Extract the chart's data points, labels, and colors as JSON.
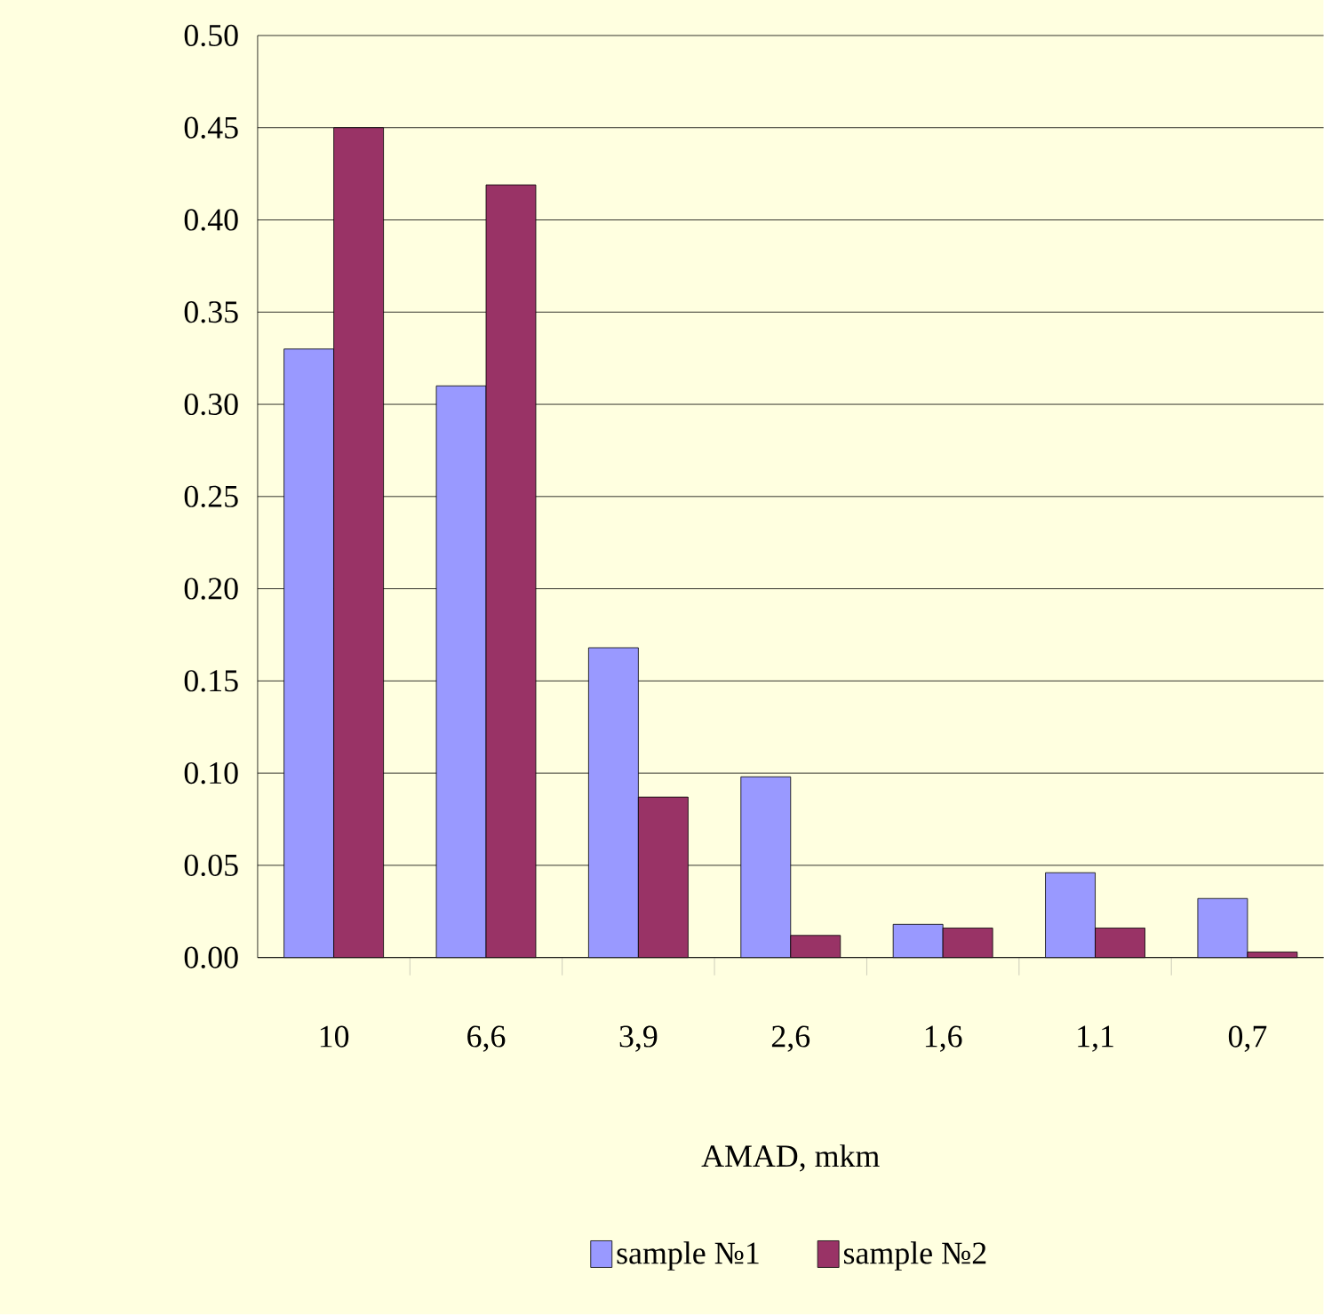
{
  "chart_data": {
    "type": "bar",
    "xlabel": "AMAD, mkm",
    "categories": [
      "10",
      "6,6",
      "3,9",
      "2,6",
      "1,6",
      "1,1",
      "0,7"
    ],
    "series": [
      {
        "name": "sample №1",
        "color": "#9999ff",
        "values": [
          0.33,
          0.31,
          0.168,
          0.098,
          0.018,
          0.046,
          0.032
        ]
      },
      {
        "name": "sample №2",
        "color": "#993366",
        "values": [
          0.45,
          0.419,
          0.087,
          0.012,
          0.016,
          0.016,
          0.003
        ]
      }
    ],
    "ylim": [
      0,
      0.5
    ],
    "yticks": [
      {
        "value": 0,
        "label": "0.00"
      },
      {
        "value": 0.05,
        "label": "0.05"
      },
      {
        "value": 0.1,
        "label": "0.10"
      },
      {
        "value": 0.15,
        "label": "0.15"
      },
      {
        "value": 0.2,
        "label": "0.20"
      },
      {
        "value": 0.25,
        "label": "0.25"
      },
      {
        "value": 0.3,
        "label": "0.30"
      },
      {
        "value": 0.35,
        "label": "0.35"
      },
      {
        "value": 0.4,
        "label": "0.40"
      },
      {
        "value": 0.45,
        "label": "0.45"
      },
      {
        "value": 0.5,
        "label": "0.50"
      }
    ],
    "grid": "y",
    "legend": "bottom"
  }
}
